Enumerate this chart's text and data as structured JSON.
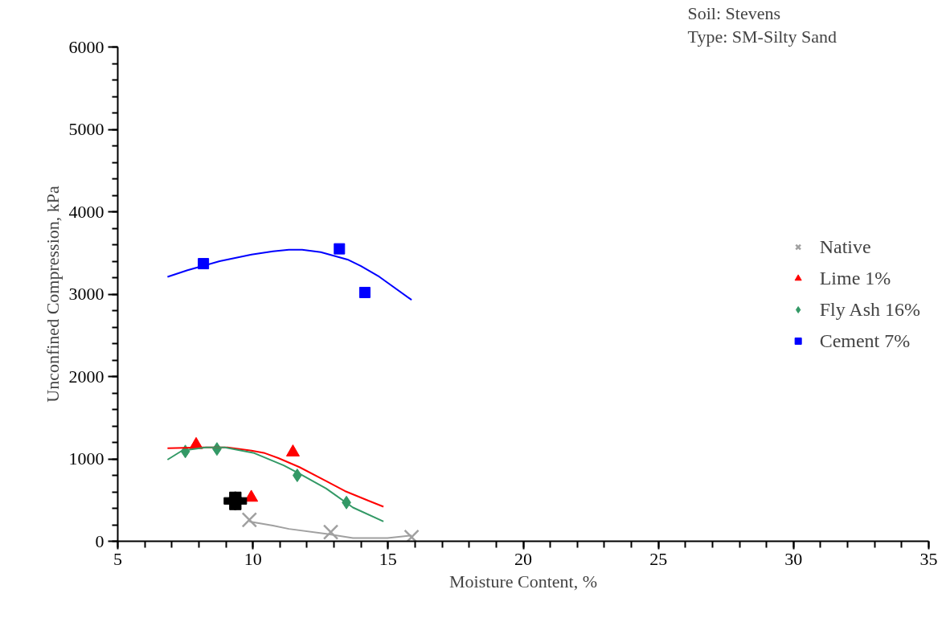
{
  "chart_data": {
    "type": "scatter",
    "xlabel": "Moisture Content, %",
    "ylabel": "Unconfined Compression, kPa",
    "annotations": [
      "Soil: Stevens",
      "Type: SM-Silty Sand"
    ],
    "xlim": [
      5,
      35
    ],
    "xticks": [
      5,
      10,
      15,
      20,
      25,
      30,
      35
    ],
    "ylim": [
      0,
      6000
    ],
    "yticks": [
      0,
      1000,
      2000,
      3000,
      4000,
      5000,
      6000
    ],
    "grid": false,
    "legend": "right",
    "series": [
      {
        "name": "Native",
        "marker": "x",
        "color": "#a0a0a0",
        "x": [
          9.87,
          12.88,
          15.87
        ],
        "values": [
          260,
          110,
          50
        ]
      },
      {
        "name": "Lime 1%",
        "marker": "triangle",
        "color": "#ff0000",
        "x": [
          7.9,
          11.48,
          9.94
        ],
        "values": [
          1170,
          1080,
          530
        ]
      },
      {
        "name": "Fly Ash 16%",
        "marker": "diamond",
        "color": "#339966",
        "x": [
          7.5,
          8.67,
          11.64,
          13.46
        ],
        "values": [
          1090,
          1120,
          800,
          470
        ]
      },
      {
        "name": "Cement 7%",
        "marker": "square",
        "color": "#0000ff",
        "x": [
          8.17,
          13.2,
          14.14
        ],
        "values": [
          3370,
          3550,
          3020
        ]
      },
      {
        "marker": "cross",
        "color": "#000000",
        "x": [
          9.26,
          9.44
        ],
        "values": [
          490,
          490
        ]
      },
      {
        "type": "line",
        "color": "#a0a0a0",
        "x": [
          9.87,
          10.74,
          11.33,
          12.71,
          13.7,
          14.98,
          15.87
        ],
        "values": [
          240,
          190,
          150,
          90,
          40,
          40,
          70
        ]
      },
      {
        "type": "line",
        "color": "#ff0000",
        "x": [
          6.84,
          8.08,
          9.06,
          9.95,
          10.44,
          10.94,
          11.72,
          12.71,
          13.4,
          14.29,
          14.83
        ],
        "values": [
          1130,
          1140,
          1140,
          1100,
          1070,
          1010,
          900,
          730,
          610,
          490,
          420
        ]
      },
      {
        "type": "line",
        "color": "#339966",
        "x": [
          6.84,
          7.38,
          8.27,
          8.96,
          10.05,
          11.14,
          11.72,
          12.71,
          13.7,
          14.83
        ],
        "values": [
          990,
          1100,
          1140,
          1140,
          1070,
          920,
          820,
          640,
          410,
          240
        ]
      },
      {
        "type": "line",
        "color": "#0000ff",
        "x": [
          6.84,
          7.58,
          8.77,
          9.95,
          10.74,
          11.33,
          11.82,
          12.51,
          13.5,
          14.0,
          14.68,
          15.87
        ],
        "values": [
          3210,
          3290,
          3400,
          3480,
          3520,
          3540,
          3540,
          3510,
          3420,
          3340,
          3210,
          2930
        ]
      }
    ]
  }
}
